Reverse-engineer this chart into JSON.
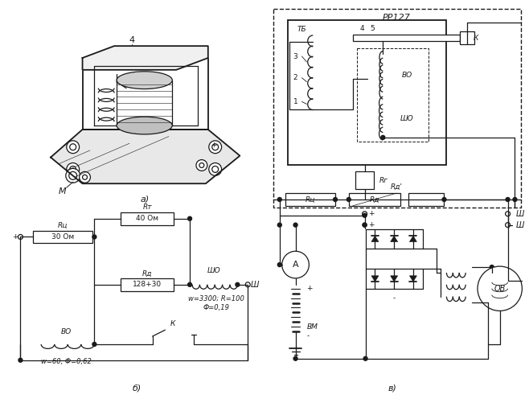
{
  "background_color": "#ffffff",
  "fig_width": 6.58,
  "fig_height": 4.96,
  "dpi": 100,
  "label_a": "а)",
  "label_b": "б)",
  "label_v": "в)",
  "text_PP127": "РР127",
  "text_TB": "ТБ",
  "text_4": "4",
  "text_5": "5",
  "text_K": "К",
  "text_3": "3",
  "text_2": "2",
  "text_1": "1",
  "text_BO_inner": "ВО",
  "text_ShO_inner": "ШО",
  "text_Rg": "Rг",
  "text_Ru": "Rц",
  "text_Ra": "Rд",
  "text_Ra_prime": "Rд'",
  "text_Sh1": "Ш",
  "text_Sh2": "Ш",
  "text_A": "A",
  "text_BM": "ВМ",
  "text_OB": "ОВ",
  "text_M": "М",
  "text_plus": "+",
  "text_minus": "-",
  "text_Rt": "Rт",
  "text_Ru_b": "Rц",
  "text_Ra_b": "Rд",
  "text_ShO_b": "ШО",
  "text_Sh_b": "Ш",
  "text_BO_b": "ВО",
  "text_K_b": "К",
  "text_rt_val": "40 Ом",
  "text_ru_val": "30 Ом",
  "text_ra_val": "128+30",
  "text_sho_params": "w=3300; R=100",
  "text_sho_params2": "Ф=0,19",
  "text_vo_params": "w=60, Ф=0,62"
}
